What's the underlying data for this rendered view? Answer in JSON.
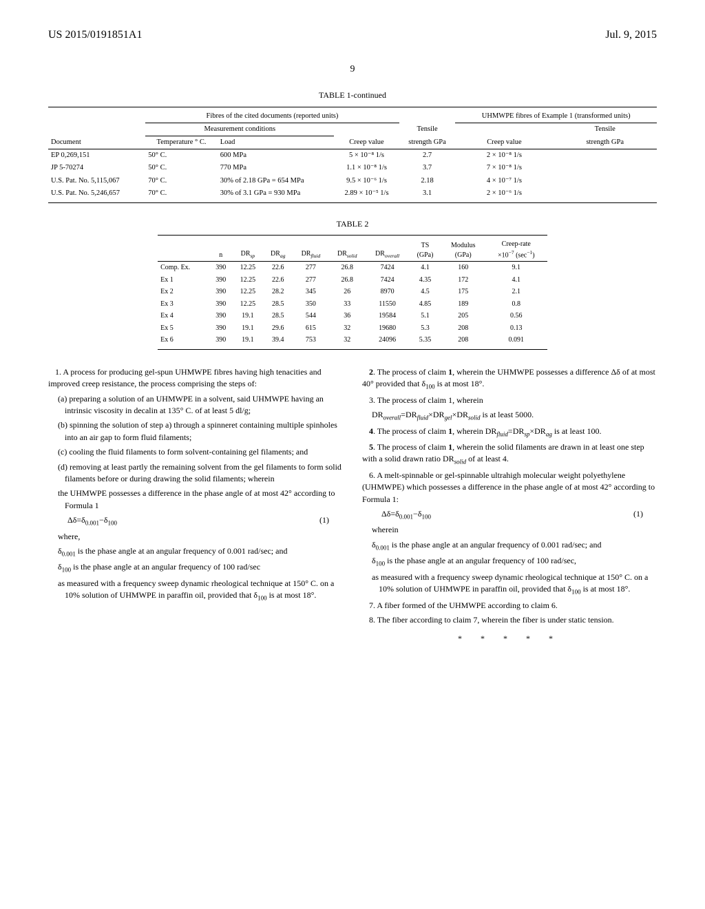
{
  "header": {
    "pub_number": "US 2015/0191851A1",
    "date": "Jul. 9, 2015"
  },
  "page_number": "9",
  "table1": {
    "title": "TABLE 1-continued",
    "super_h1": "Fibres of the cited documents (reported units)",
    "super_h2": "UHMWPE fibres of Example 1 (transformed units)",
    "sub_h1": "Measurement conditions",
    "sub_h2a": "Tensile",
    "sub_h2b": "Tensile",
    "cols": {
      "doc": "Document",
      "temp": "Temperature ° C.",
      "load": "Load",
      "creep": "Creep value",
      "strength": "strength GPa",
      "creep2": "Creep value",
      "strength2": "strength GPa"
    },
    "rows": [
      {
        "doc": "EP 0,269,151",
        "temp": "50° C.",
        "load": "600 MPa",
        "creep": "5 × 10⁻⁸ 1/s",
        "strength": "2.7",
        "creep2": "2 × 10⁻⁸ 1/s",
        "strength2": ""
      },
      {
        "doc": "JP 5-70274",
        "temp": "50° C.",
        "load": "770 MPa",
        "creep": "1.1 × 10⁻⁸ 1/s",
        "strength": "3.7",
        "creep2": "7 × 10⁻⁸ 1/s",
        "strength2": ""
      },
      {
        "doc": "U.S. Pat. No. 5,115,067",
        "temp": "70° C.",
        "load": "30% of 2.18 GPa = 654 MPa",
        "creep": "9.5 × 10⁻⁶ 1/s",
        "strength": "2.18",
        "creep2": "4 × 10⁻⁷ 1/s",
        "strength2": ""
      },
      {
        "doc": "U.S. Pat. No. 5,246,657",
        "temp": "70° C.",
        "load": "30% of 3.1 GPa = 930 MPa",
        "creep": "2.89 × 10⁻⁵ 1/s",
        "strength": "3.1",
        "creep2": "2 × 10⁻⁶ 1/s",
        "strength2": ""
      }
    ]
  },
  "table2": {
    "title": "TABLE 2",
    "cols": [
      "",
      "n",
      "DRsp",
      "DRag",
      "DRfluid",
      "DRsolid",
      "DRoverall",
      "TS (GPa)",
      "Modulus (GPa)",
      "Creep-rate ×10⁻⁷ (sec⁻¹)"
    ],
    "rows": [
      [
        "Comp. Ex.",
        "390",
        "12.25",
        "22.6",
        "277",
        "26.8",
        "7424",
        "4.1",
        "160",
        "9.1"
      ],
      [
        "Ex 1",
        "390",
        "12.25",
        "22.6",
        "277",
        "26.8",
        "7424",
        "4.35",
        "172",
        "4.1"
      ],
      [
        "Ex 2",
        "390",
        "12.25",
        "28.2",
        "345",
        "26",
        "8970",
        "4.5",
        "175",
        "2.1"
      ],
      [
        "Ex 3",
        "390",
        "12.25",
        "28.5",
        "350",
        "33",
        "11550",
        "4.85",
        "189",
        "0.8"
      ],
      [
        "Ex 4",
        "390",
        "19.1",
        "28.5",
        "544",
        "36",
        "19584",
        "5.1",
        "205",
        "0.56"
      ],
      [
        "Ex 5",
        "390",
        "19.1",
        "29.6",
        "615",
        "32",
        "19680",
        "5.3",
        "208",
        "0.13"
      ],
      [
        "Ex 6",
        "390",
        "19.1",
        "39.4",
        "753",
        "32",
        "24096",
        "5.35",
        "208",
        "0.091"
      ]
    ]
  },
  "claims_left": {
    "c1_intro": "1. A process for producing gel-spun UHMWPE fibres having high tenacities and improved creep resistance, the process comprising the steps of:",
    "c1a": "(a) preparing a solution of an UHMWPE in a solvent, said UHMWPE having an intrinsic viscosity in decalin at 135° C. of at least 5 dl/g;",
    "c1b": "(b) spinning the solution of step a) through a spinneret containing multiple spinholes into an air gap to form fluid filaments;",
    "c1c": "(c) cooling the fluid filaments to form solvent-containing gel filaments; and",
    "c1d": "(d) removing at least partly the remaining solvent from the gel filaments to form solid filaments before or during drawing the solid filaments; wherein",
    "c1_wherein": "the UHMWPE possesses a difference in the phase angle of at most 42° according to Formula 1",
    "formula": "Δδ=δ0.001−δ100",
    "formula_num": "(1)",
    "where": "where,",
    "d001": "δ0.001 is the phase angle at an angular frequency of 0.001 rad/sec; and",
    "d100": "δ100 is the phase angle at an angular frequency of 100 rad/sec",
    "measured": "as measured with a frequency sweep dynamic rheological technique at 150° C. on a 10% solution of UHMWPE in paraffin oil, provided that δ100 is at most 18°."
  },
  "claims_right": {
    "c2": "2. The process of claim 1, wherein the UHMWPE possesses a difference Δδ of at most 40° provided that δ100 is at most 18°.",
    "c3a": "3. The process of claim 1, wherein",
    "c3b": "DRoverall=DRfluid×DRgel×DRsolid is at least 5000.",
    "c4": "4. The process of claim 1, wherein DRfluid=DRsp×DRag is at least 100.",
    "c5": "5. The process of claim 1, wherein the solid filaments are drawn in at least one step with a solid drawn ratio DRsolid of at least 4.",
    "c6": "6. A melt-spinnable or gel-spinnable ultrahigh molecular weight polyethylene (UHMWPE) which possesses a difference in the phase angle of at most 42° according to Formula 1:",
    "formula": "Δδ=δ0.001−δ100",
    "formula_num": "(1)",
    "wherein": "wherein",
    "d001": "δ0.001 is the phase angle at an angular frequency of 0.001 rad/sec; and",
    "d100": "δ100 is the phase angle at an angular frequency of 100 rad/sec,",
    "measured": "as measured with a frequency sweep dynamic rheological technique at 150° C. on a 10% solution of UHMWPE in paraffin oil, provided that δ100 is at most 18°.",
    "c7": "7. A fiber formed of the UHMWPE according to claim 6.",
    "c8": "8. The fiber according to claim 7, wherein the fiber is under static tension.",
    "end": "* * * * *"
  }
}
